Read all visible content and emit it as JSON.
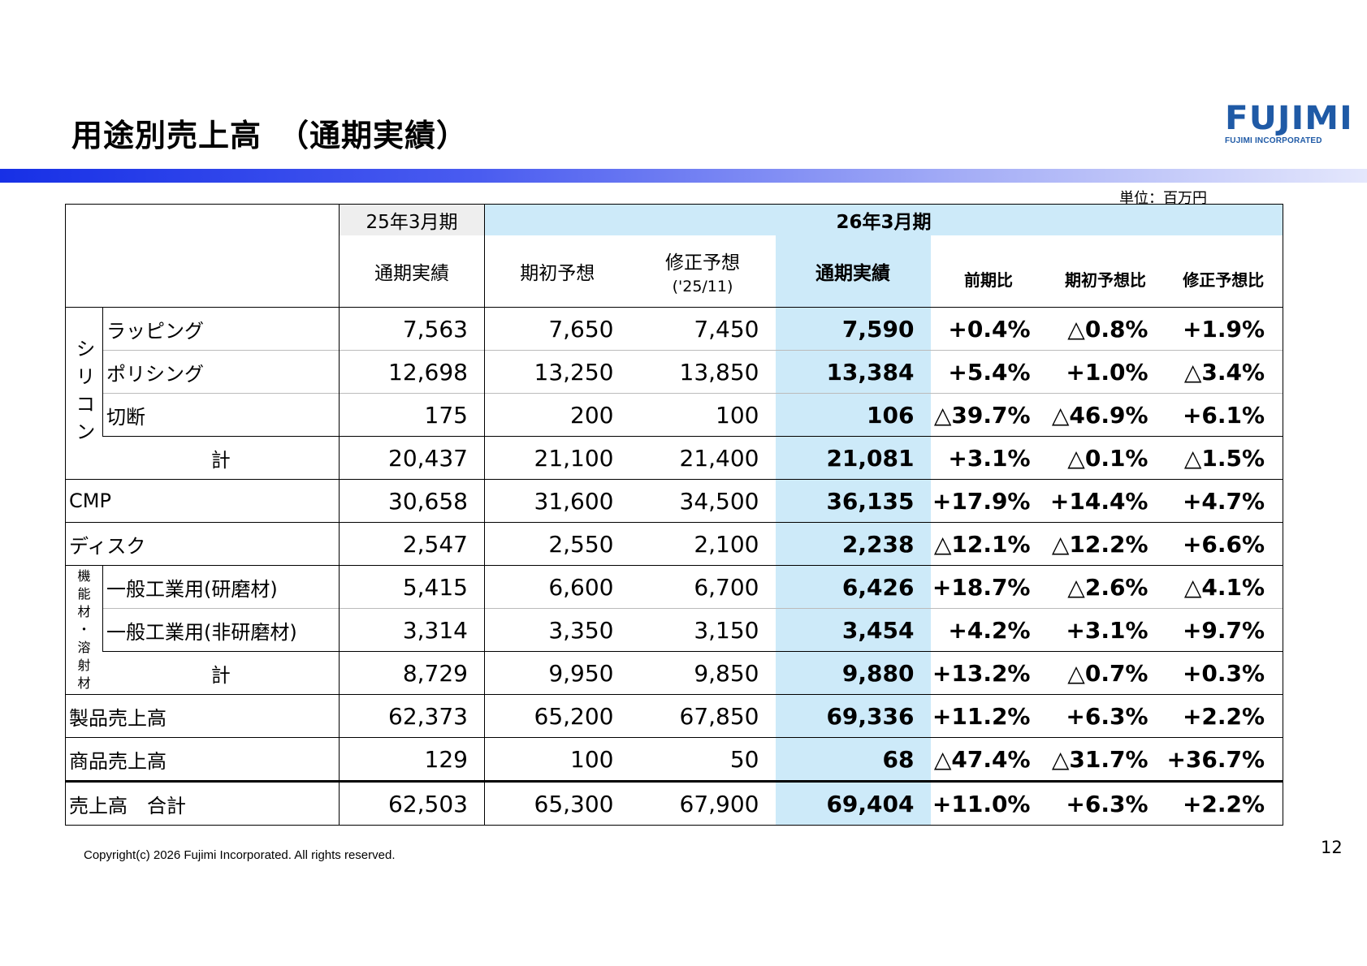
{
  "title": "用途別売上高　（通期実績）",
  "logo": {
    "mark": "FUJIMI",
    "sub": "FUJIMI INCORPORATED"
  },
  "unit": "単位：百万円",
  "headers": {
    "fy25": "25年3月期",
    "fy26": "26年3月期",
    "col_actual_prev": "通期実績",
    "col_initial": "期初予想",
    "col_revised": "修正予想",
    "col_revised_sub": "('25/11)",
    "col_actual": "通期実績",
    "col_yoy": "前期比",
    "col_vs_initial": "期初予想比",
    "col_vs_revised": "修正予想比"
  },
  "groups": {
    "silicon": "シリコン",
    "functional": "機能材・溶射材",
    "subtotal": "計"
  },
  "rows": [
    {
      "label": "ラッピング",
      "v": [
        "7,563",
        "7,650",
        "7,450",
        "7,590",
        "+0.4%",
        "△0.8%",
        "+1.9%"
      ]
    },
    {
      "label": "ポリシング",
      "v": [
        "12,698",
        "13,250",
        "13,850",
        "13,384",
        "+5.4%",
        "+1.0%",
        "△3.4%"
      ]
    },
    {
      "label": "切断",
      "v": [
        "175",
        "200",
        "100",
        "106",
        "△39.7%",
        "△46.9%",
        "+6.1%"
      ]
    },
    {
      "label": "計",
      "v": [
        "20,437",
        "21,100",
        "21,400",
        "21,081",
        "+3.1%",
        "△0.1%",
        "△1.5%"
      ]
    },
    {
      "label": "CMP",
      "v": [
        "30,658",
        "31,600",
        "34,500",
        "36,135",
        "+17.9%",
        "+14.4%",
        "+4.7%"
      ]
    },
    {
      "label": "ディスク",
      "v": [
        "2,547",
        "2,550",
        "2,100",
        "2,238",
        "△12.1%",
        "△12.2%",
        "+6.6%"
      ]
    },
    {
      "label": "一般工業用(研磨材)",
      "v": [
        "5,415",
        "6,600",
        "6,700",
        "6,426",
        "+18.7%",
        "△2.6%",
        "△4.1%"
      ]
    },
    {
      "label": "一般工業用(非研磨材)",
      "v": [
        "3,314",
        "3,350",
        "3,150",
        "3,454",
        "+4.2%",
        "+3.1%",
        "+9.7%"
      ]
    },
    {
      "label": "計",
      "v": [
        "8,729",
        "9,950",
        "9,850",
        "9,880",
        "+13.2%",
        "△0.7%",
        "+0.3%"
      ]
    },
    {
      "label": "製品売上高",
      "v": [
        "62,373",
        "65,200",
        "67,850",
        "69,336",
        "+11.2%",
        "+6.3%",
        "+2.2%"
      ]
    },
    {
      "label": "商品売上高",
      "v": [
        "129",
        "100",
        "50",
        "68",
        "△47.4%",
        "△31.7%",
        "+36.7%"
      ]
    },
    {
      "label": "売上高　合計",
      "v": [
        "62,503",
        "65,300",
        "67,900",
        "69,404",
        "+11.0%",
        "+6.3%",
        "+2.2%"
      ]
    }
  ],
  "footer": "Copyright(c) 2026 Fujimi Incorporated. All rights reserved.",
  "page_number": "12"
}
